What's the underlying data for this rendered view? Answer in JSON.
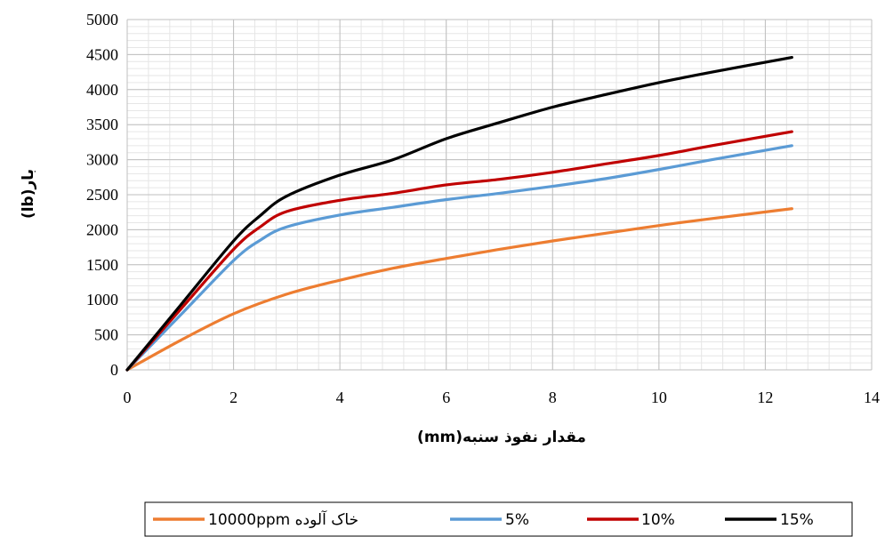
{
  "chart_data": {
    "type": "line",
    "title": "",
    "xlabel": "مقدار نفوذ سنبه(mm)",
    "ylabel": "بار(lb)",
    "xlim": [
      0,
      14
    ],
    "ylim": [
      0,
      5000
    ],
    "x_ticks": [
      "0",
      "2",
      "4",
      "6",
      "8",
      "10",
      "12",
      "14"
    ],
    "y_ticks": [
      "0",
      "500",
      "1000",
      "1500",
      "2000",
      "2500",
      "3000",
      "3500",
      "4000",
      "4500",
      "5000"
    ],
    "grid": true,
    "legend_position": "bottom",
    "series": [
      {
        "name": "خاک آلوده 10000ppm",
        "color": "#ed7d31",
        "x": [
          0,
          1,
          2,
          3,
          4,
          5,
          6,
          7,
          8,
          9,
          10,
          11,
          12.5
        ],
        "y": [
          0,
          420,
          800,
          1080,
          1280,
          1450,
          1590,
          1720,
          1840,
          1950,
          2060,
          2160,
          2300
        ]
      },
      {
        "name": "5%",
        "color": "#5b9bd5",
        "x": [
          0,
          1,
          2,
          2.5,
          3,
          4,
          5,
          6,
          7,
          8,
          9,
          10,
          11,
          12.5
        ],
        "y": [
          0,
          780,
          1560,
          1850,
          2040,
          2210,
          2320,
          2430,
          2520,
          2620,
          2730,
          2860,
          3000,
          3200
        ]
      },
      {
        "name": "10%",
        "color": "#c00000",
        "x": [
          0,
          1,
          2,
          2.5,
          3,
          4,
          5,
          6,
          7,
          8,
          9,
          10,
          11,
          12.5
        ],
        "y": [
          0,
          860,
          1720,
          2040,
          2260,
          2420,
          2520,
          2640,
          2720,
          2820,
          2940,
          3060,
          3200,
          3400
        ]
      },
      {
        "name": "15%",
        "color": "#000000",
        "x": [
          0,
          1,
          2,
          2.5,
          3,
          4,
          5,
          6,
          7,
          8,
          9,
          10,
          11,
          12.5
        ],
        "y": [
          0,
          920,
          1840,
          2200,
          2480,
          2780,
          3000,
          3300,
          3530,
          3750,
          3930,
          4100,
          4250,
          4460
        ]
      }
    ]
  }
}
